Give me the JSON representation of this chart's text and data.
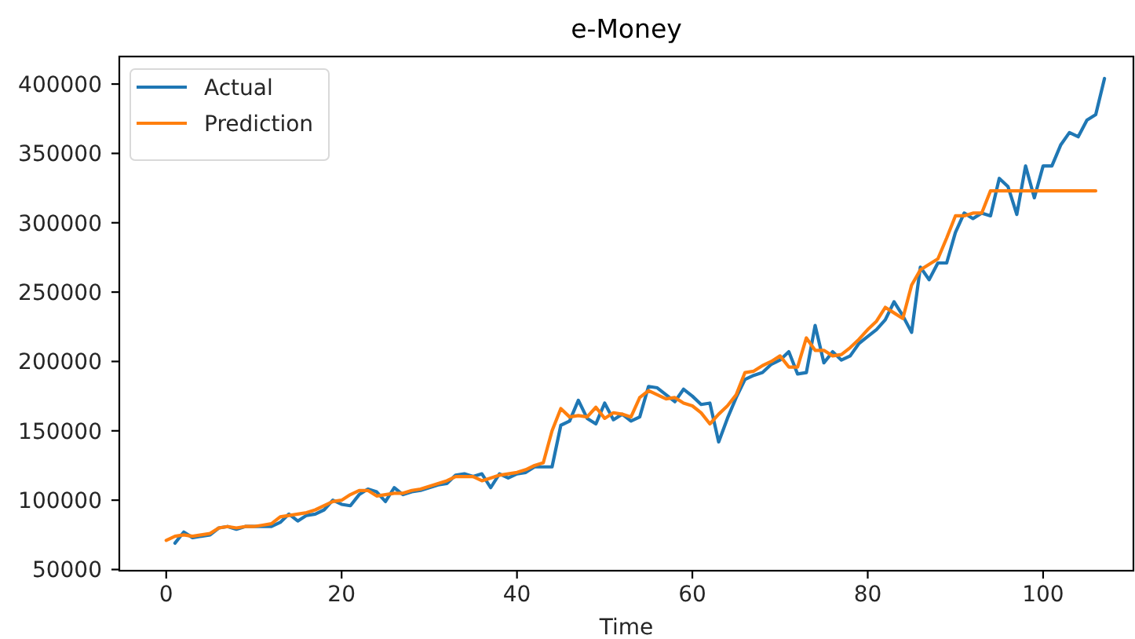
{
  "chart_data": {
    "type": "line",
    "title": "e-Money",
    "xlabel": "Time",
    "xlim": [
      -5.35,
      110.3
    ],
    "ylim": [
      49150,
      419850
    ],
    "xticks": [
      0,
      20,
      40,
      60,
      80,
      100
    ],
    "yticks": [
      50000,
      100000,
      150000,
      200000,
      250000,
      300000,
      350000,
      400000
    ],
    "legend": "top left",
    "series": [
      {
        "name": "Actual",
        "color": "#1f77b4",
        "x": [
          1,
          2,
          3,
          4,
          5,
          6,
          7,
          8,
          9,
          10,
          11,
          12,
          13,
          14,
          15,
          16,
          17,
          18,
          19,
          20,
          21,
          22,
          23,
          24,
          25,
          26,
          27,
          28,
          29,
          30,
          31,
          32,
          33,
          34,
          35,
          36,
          37,
          38,
          39,
          40,
          41,
          42,
          43,
          44,
          45,
          46,
          47,
          48,
          49,
          50,
          51,
          52,
          53,
          54,
          55,
          56,
          57,
          58,
          59,
          60,
          61,
          62,
          63,
          64,
          65,
          66,
          67,
          68,
          69,
          70,
          71,
          72,
          73,
          74,
          75,
          76,
          77,
          78,
          79,
          80,
          81,
          82,
          83,
          84,
          85,
          86,
          87,
          88,
          89,
          90,
          91,
          92,
          93,
          94,
          95,
          96,
          97,
          98,
          99,
          100,
          101,
          102,
          103,
          104,
          105,
          106,
          107
        ],
        "values": [
          69000,
          77000,
          73000,
          74000,
          75000,
          80000,
          81000,
          79000,
          81000,
          81000,
          81000,
          81000,
          84000,
          90000,
          85000,
          89000,
          90000,
          93000,
          100000,
          97000,
          96000,
          104000,
          108000,
          106000,
          99000,
          109000,
          104000,
          106000,
          107000,
          109000,
          111000,
          112000,
          118000,
          119000,
          117000,
          119000,
          109000,
          119000,
          116000,
          119000,
          120000,
          124000,
          124000,
          124000,
          154000,
          157000,
          172000,
          159000,
          155000,
          170000,
          158000,
          162000,
          157000,
          160000,
          182000,
          181000,
          176000,
          171000,
          180000,
          175000,
          169000,
          170000,
          142000,
          159000,
          174000,
          187000,
          190000,
          192000,
          198000,
          201000,
          207000,
          191000,
          192000,
          226000,
          199000,
          207000,
          201000,
          204000,
          213000,
          218000,
          223000,
          230000,
          243000,
          233000,
          221000,
          268000,
          259000,
          271000,
          271000,
          293000,
          307000,
          303000,
          307000,
          305000,
          332000,
          326000,
          306000,
          341000,
          318000,
          341000,
          341000,
          356000,
          365000,
          362000,
          374000,
          378000,
          404000
        ]
      },
      {
        "name": "Prediction",
        "color": "#ff7f0e",
        "x": [
          0,
          1,
          2,
          3,
          4,
          5,
          6,
          7,
          8,
          9,
          10,
          11,
          12,
          13,
          14,
          15,
          16,
          17,
          18,
          19,
          20,
          21,
          22,
          23,
          24,
          25,
          26,
          27,
          28,
          29,
          30,
          31,
          32,
          33,
          34,
          35,
          36,
          37,
          38,
          39,
          40,
          41,
          42,
          43,
          44,
          45,
          46,
          47,
          48,
          49,
          50,
          51,
          52,
          53,
          54,
          55,
          56,
          57,
          58,
          59,
          60,
          61,
          62,
          63,
          64,
          65,
          66,
          67,
          68,
          69,
          70,
          71,
          72,
          73,
          74,
          75,
          76,
          77,
          78,
          79,
          80,
          81,
          82,
          83,
          84,
          85,
          86,
          87,
          88,
          89,
          90,
          91,
          92,
          93,
          94,
          95,
          96,
          97,
          98,
          99,
          100,
          101,
          102,
          103,
          104,
          105,
          106
        ],
        "values": [
          71000,
          74000,
          75000,
          74000,
          75000,
          76000,
          80000,
          81000,
          80000,
          81000,
          81000,
          82000,
          83000,
          88000,
          89000,
          90000,
          91000,
          93000,
          96000,
          99000,
          100000,
          104000,
          107000,
          107000,
          103000,
          104000,
          105000,
          105000,
          107000,
          108000,
          110000,
          112000,
          114000,
          117000,
          117000,
          117000,
          114000,
          116000,
          118000,
          119000,
          120000,
          122000,
          125000,
          127000,
          150000,
          166000,
          160000,
          161000,
          160000,
          167000,
          159000,
          163000,
          162000,
          160000,
          174000,
          179000,
          176000,
          173000,
          174000,
          170000,
          168000,
          163000,
          155000,
          162000,
          168000,
          176000,
          192000,
          193000,
          197000,
          200000,
          204000,
          196000,
          196000,
          217000,
          208000,
          208000,
          204000,
          205000,
          210000,
          216000,
          223000,
          229000,
          239000,
          235000,
          231000,
          255000,
          266000,
          270000,
          274000,
          289000,
          305000,
          305000,
          307000,
          307000,
          323000,
          323000,
          323000,
          323000,
          323000,
          323000,
          323000,
          323000,
          323000,
          323000,
          323000,
          323000,
          323000
        ]
      }
    ]
  }
}
